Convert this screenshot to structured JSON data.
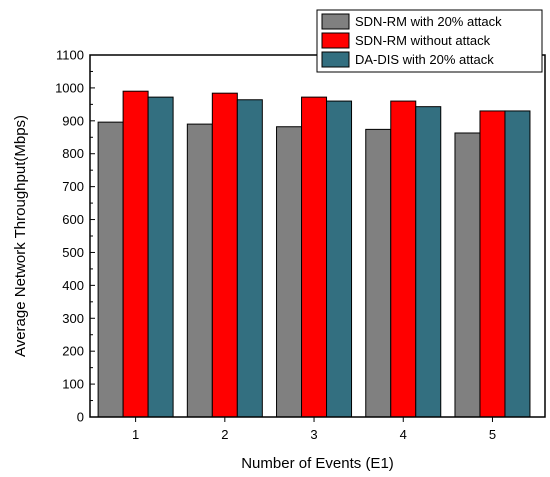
{
  "chart_data": {
    "type": "bar",
    "xlabel": "Number of Events (E1)",
    "ylabel": "Average Network Throughput(Mbps)",
    "categories": [
      "1",
      "2",
      "3",
      "4",
      "5"
    ],
    "ylim": [
      0,
      1100
    ],
    "yticks": [
      "0",
      "100",
      "200",
      "300",
      "400",
      "500",
      "600",
      "700",
      "800",
      "900",
      "1000",
      "1100"
    ],
    "grid": false,
    "legend_position": "top-right",
    "series": [
      {
        "name": "SDN-RM with 20% attack",
        "color": "#808080",
        "values": [
          896,
          890,
          882,
          874,
          863
        ]
      },
      {
        "name": "SDN-RM without attack",
        "color": "#ff0000",
        "values": [
          990,
          984,
          972,
          960,
          930
        ]
      },
      {
        "name": "DA-DIS with 20% attack",
        "color": "#336f80",
        "values": [
          972,
          964,
          960,
          943,
          930
        ]
      }
    ]
  }
}
